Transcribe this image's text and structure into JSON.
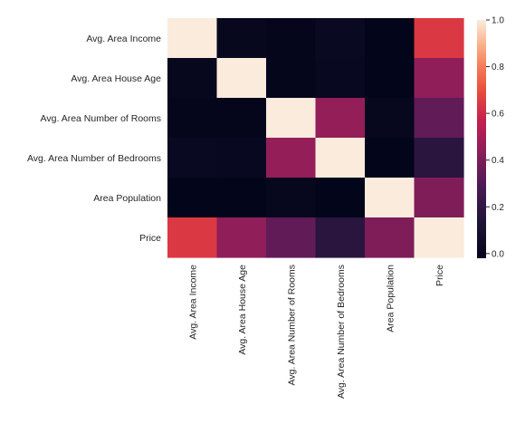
{
  "chart_data": {
    "type": "heatmap",
    "title": "",
    "xlabel": "",
    "ylabel": "",
    "rows": [
      "Avg. Area Income",
      "Avg. Area House Age",
      "Avg. Area Number of Rooms",
      "Avg. Area Number of Bedrooms",
      "Area Population",
      "Price"
    ],
    "columns": [
      "Avg. Area Income",
      "Avg. Area House Age",
      "Avg. Area Number of Rooms",
      "Avg. Area Number of Bedrooms",
      "Area Population",
      "Price"
    ],
    "values": [
      [
        1.0,
        0.0,
        -0.01,
        0.02,
        -0.02,
        0.64
      ],
      [
        0.0,
        1.0,
        -0.01,
        0.01,
        -0.02,
        0.45
      ],
      [
        -0.01,
        -0.01,
        1.0,
        0.46,
        0.0,
        0.34
      ],
      [
        0.02,
        0.01,
        0.46,
        1.0,
        -0.02,
        0.17
      ],
      [
        -0.02,
        -0.02,
        0.0,
        -0.02,
        1.0,
        0.41
      ],
      [
        0.64,
        0.45,
        0.34,
        0.17,
        0.41,
        1.0
      ]
    ],
    "colorbar": {
      "range": [
        -0.02,
        1.0
      ],
      "ticks": [
        0.0,
        0.2,
        0.4,
        0.6,
        0.8,
        1.0
      ],
      "tick_labels": [
        "0.0",
        "0.2",
        "0.4",
        "0.6",
        "0.8",
        "1.0"
      ],
      "colormap": "rocket"
    },
    "grid": false,
    "legend": "colorbar-right"
  }
}
